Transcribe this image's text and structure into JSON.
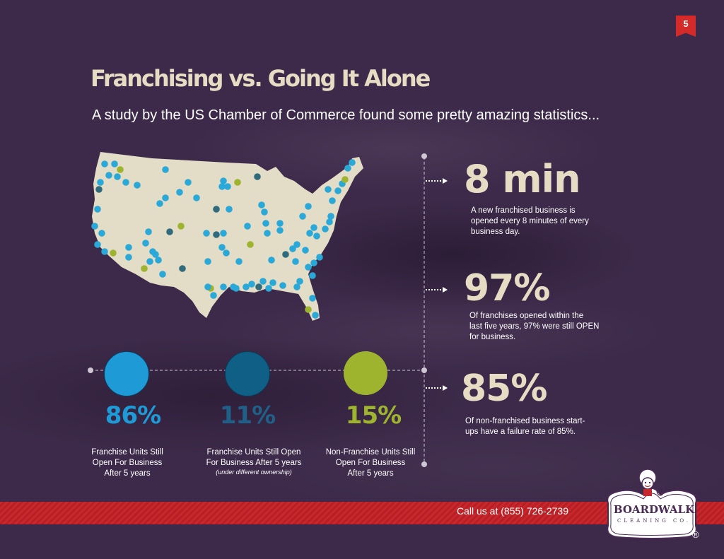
{
  "page_number": "5",
  "title": "Franchising vs. Going It Alone",
  "subtitle": "A study by the US Chamber of Commerce found some pretty amazing statistics...",
  "colors": {
    "background": "#3d2a4a",
    "accent_cream": "#e6dcc4",
    "blue": "#1e9ad6",
    "dark_blue": "#0f5f86",
    "green": "#9fb42e",
    "red": "#c6282d"
  },
  "stats": [
    {
      "value": "8 min",
      "description": "A new franchised business is\nopened every 8 minutes of every\nbusiness day."
    },
    {
      "value": "97%",
      "description": "Of franchises opened within the\nlast five years, 97% were still OPEN\nfor business."
    },
    {
      "value": "85%",
      "description": "Of non-franchised business start-\nups have a failure rate of 85%."
    }
  ],
  "percentages": [
    {
      "value": "86%",
      "color": "#1e9ad6",
      "label": "Franchise Units Still\nOpen For Business\nAfter 5 years",
      "note": ""
    },
    {
      "value": "11%",
      "color": "#0f5f86",
      "label": "Franchise Units Still Open\nFor Business After 5 years",
      "note": "(under different ownership)"
    },
    {
      "value": "15%",
      "color": "#9fb42e",
      "label": "Non-Franchise Units Still\nOpen For Business\nAfter 5 years",
      "note": ""
    }
  ],
  "footer": {
    "phone": "Call us at (855) 726-2739",
    "logo_text": "BOARDWALK",
    "logo_sub": "CLEANING CO.",
    "registered": "®"
  }
}
